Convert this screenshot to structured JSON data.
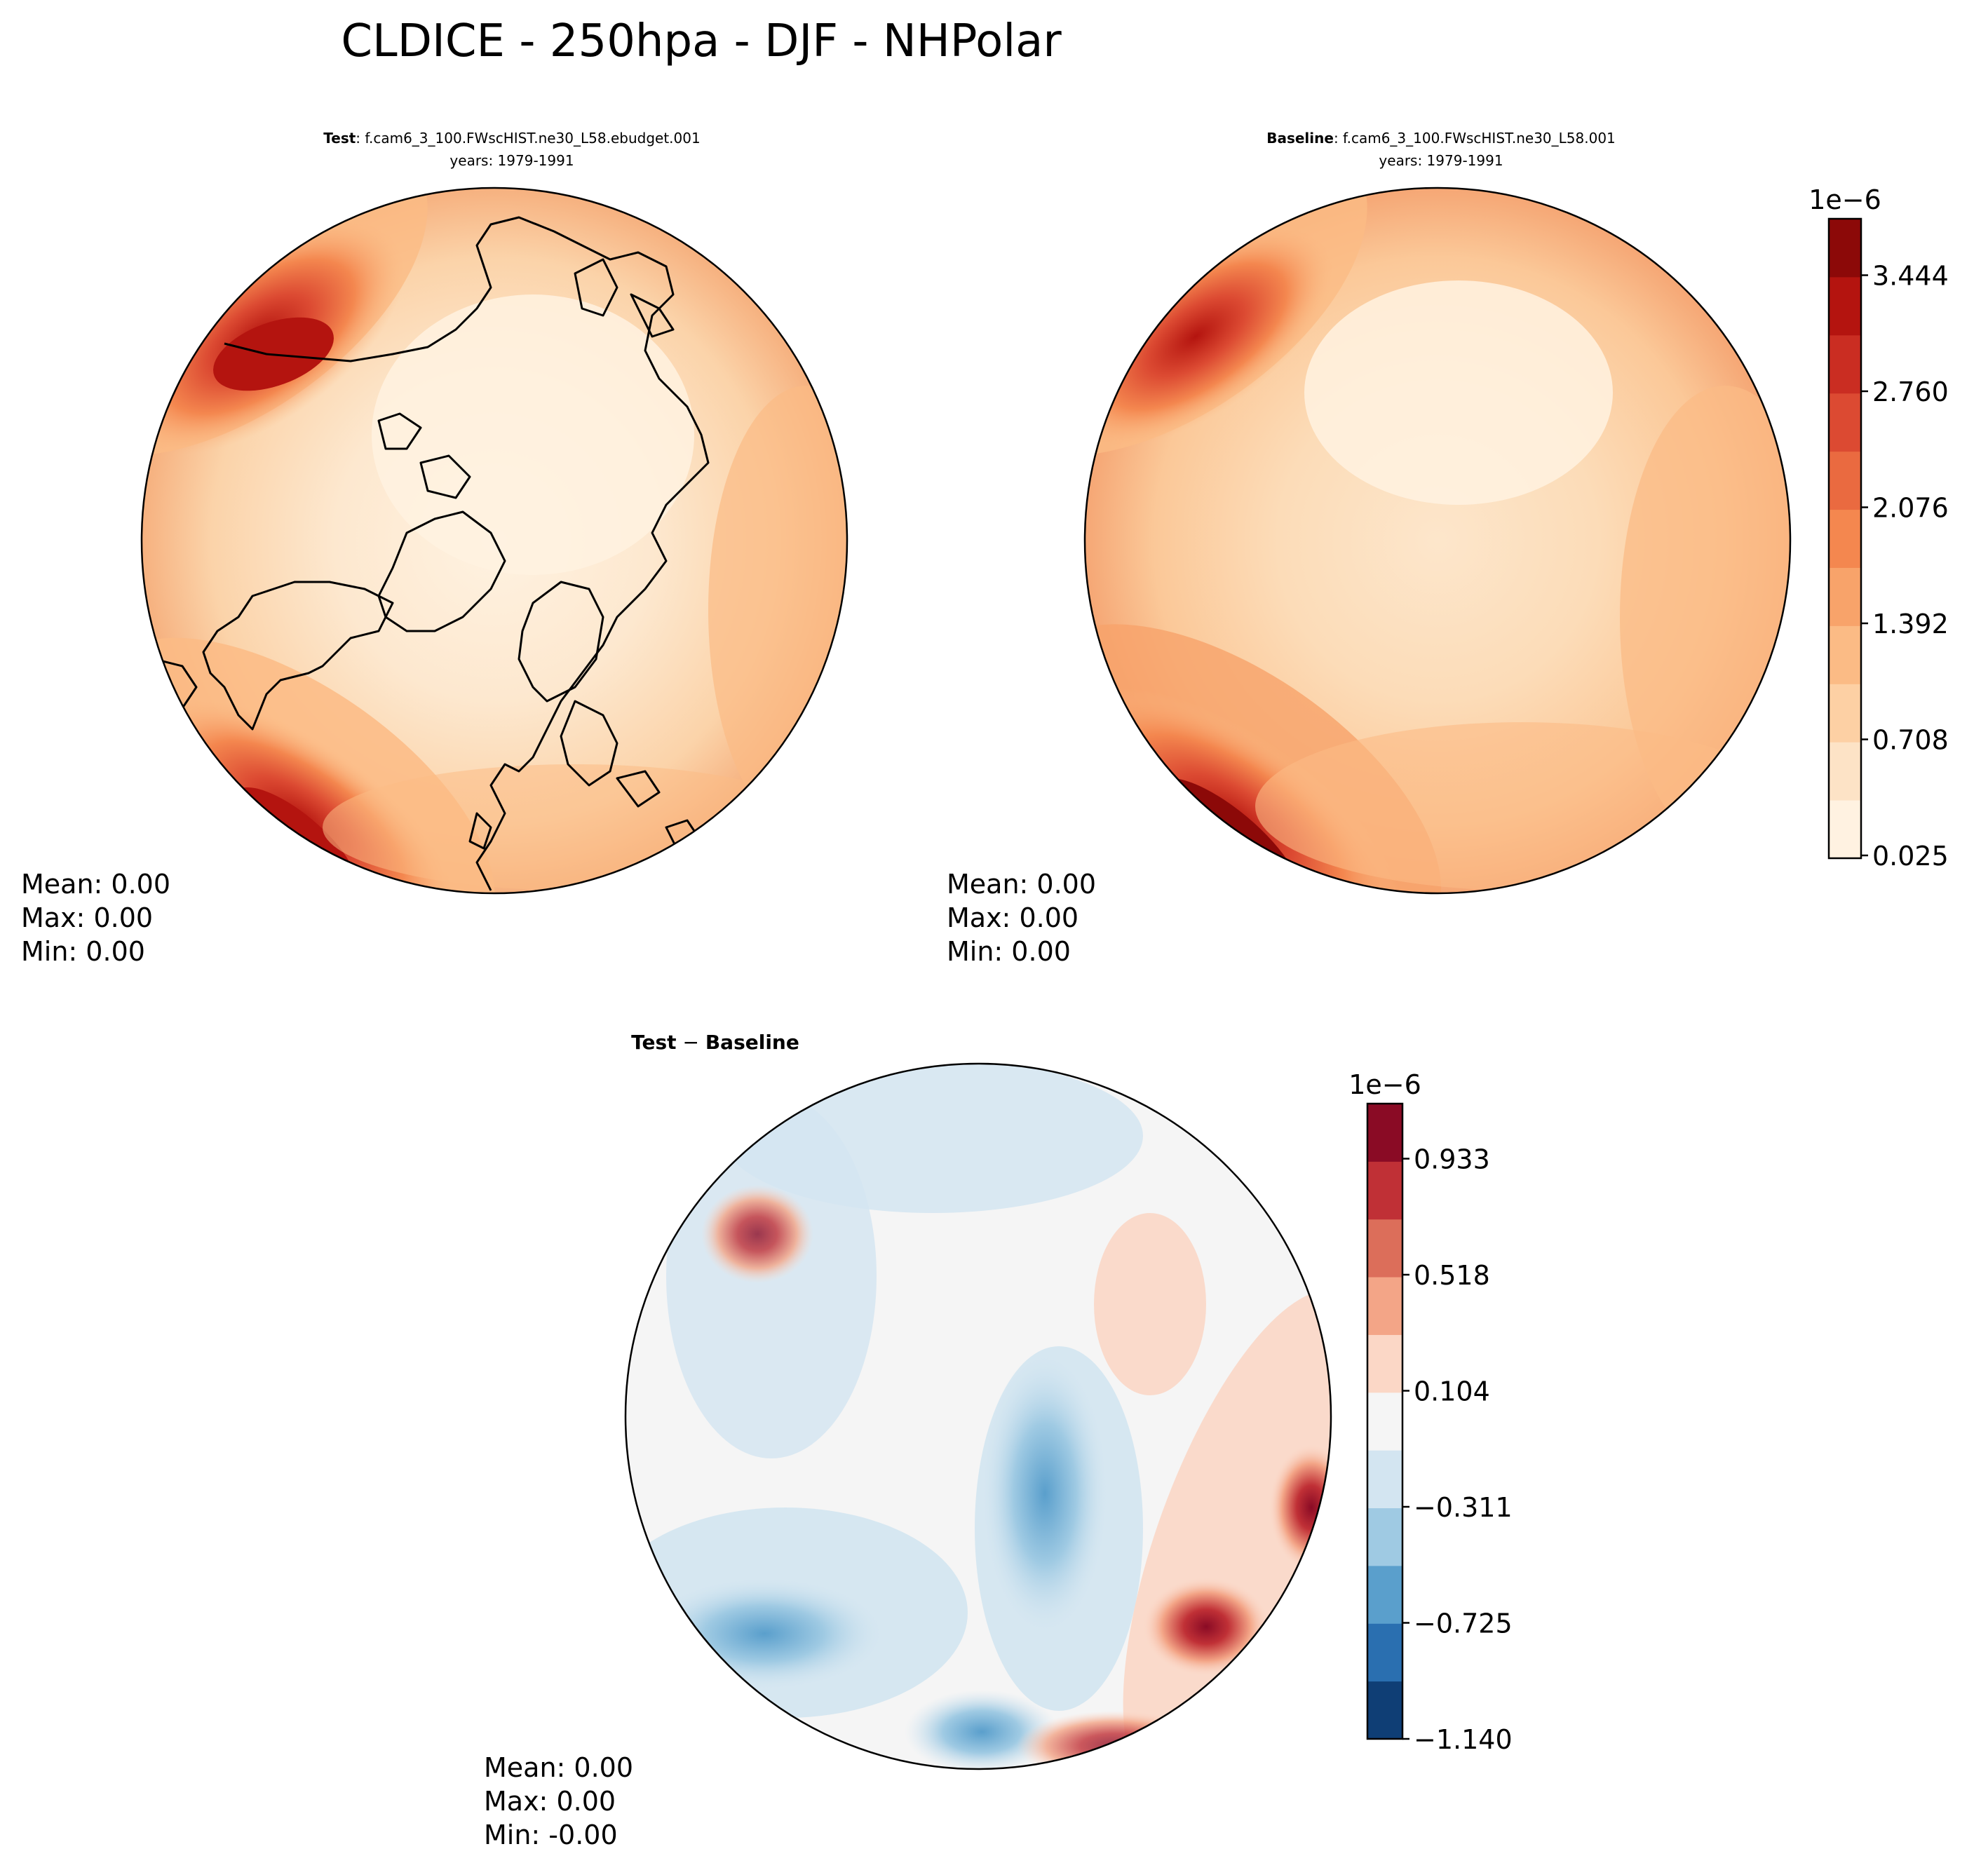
{
  "title": "CLDICE - 250hpa - DJF - NHPolar",
  "panels": [
    {
      "id": "test",
      "label_bold": "Test",
      "label_rest": ": f.cam6_3_100.FWscHIST.ne30_L58.ebudget.001",
      "years": "years: 1979-1991",
      "stats": [
        "Mean:  0.00",
        "Max:  0.00",
        "Min:  0.00"
      ]
    },
    {
      "id": "baseline",
      "label_bold": "Baseline",
      "label_rest": ": f.cam6_3_100.FWscHIST.ne30_L58.001",
      "years": "years: 1979-1991",
      "stats": [
        "Mean:  0.00",
        "Max:  0.00",
        "Min:  0.00"
      ]
    },
    {
      "id": "diff",
      "label_bold": "Test",
      "label_mid": " − ",
      "label_bold2": "Baseline",
      "stats": [
        "Mean:  0.00",
        "Max:  0.00",
        "Min: -0.00"
      ]
    }
  ],
  "chart_data": [
    {
      "type": "filled-contour-map",
      "projection": "north-polar-stereographic",
      "panel": "test",
      "colormap": "OrRd-like (Reds)",
      "colorbar_exponent": "1e−6",
      "colorbar_ticks": [
        "0.025",
        "0.708",
        "1.392",
        "2.076",
        "2.760",
        "3.444"
      ],
      "levels_min": 0.025,
      "levels_max": 3.8,
      "colorbar_colors": [
        "#fff2e1",
        "#fde3c6",
        "#fdd0a4",
        "#fbbb85",
        "#f8a36a",
        "#f4874f",
        "#ea6a40",
        "#dc4a32",
        "#ca2d22",
        "#b4140f",
        "#8c0908"
      ],
      "regions": [
        {
          "location": "Pacific/Aleutian",
          "level": "high (~3.4)"
        },
        {
          "location": "Central Pacific / East Asia coast",
          "level": "high (~3.8)"
        },
        {
          "location": "Central Arctic",
          "level": "low (~0.1)"
        }
      ]
    },
    {
      "type": "filled-contour-map",
      "projection": "north-polar-stereographic",
      "panel": "baseline",
      "colorbar_exponent": "1e−6",
      "colorbar_ticks": [
        "0.025",
        "0.708",
        "1.392",
        "2.076",
        "2.760",
        "3.444"
      ]
    },
    {
      "type": "filled-contour-map",
      "projection": "north-polar-stereographic",
      "panel": "diff",
      "colormap": "RdBu_r",
      "colorbar_exponent": "1e−6",
      "colorbar_ticks": [
        "−1.140",
        "−0.725",
        "−0.311",
        "0.104",
        "0.518",
        "0.933"
      ],
      "colorbar_colors": [
        "#0f3e75",
        "#2a6fb0",
        "#5a9fcc",
        "#9fcae3",
        "#d3e5f1",
        "#f5f5f5",
        "#fbd7c6",
        "#f3a587",
        "#dc6e5a",
        "#c03036",
        "#8a0b25"
      ],
      "regions": [
        {
          "location": "Eurasia / Siberia",
          "level": "negative (~−0.7)"
        },
        {
          "location": "Western Pacific",
          "level": "positive (~+1.0)"
        },
        {
          "location": "North Atlantic / Europe",
          "level": "negative (~−0.5)"
        }
      ]
    }
  ],
  "colors": {
    "test_base": "#fdebd3",
    "diff_base": "#f5f5f5",
    "coastline": "#000000"
  }
}
